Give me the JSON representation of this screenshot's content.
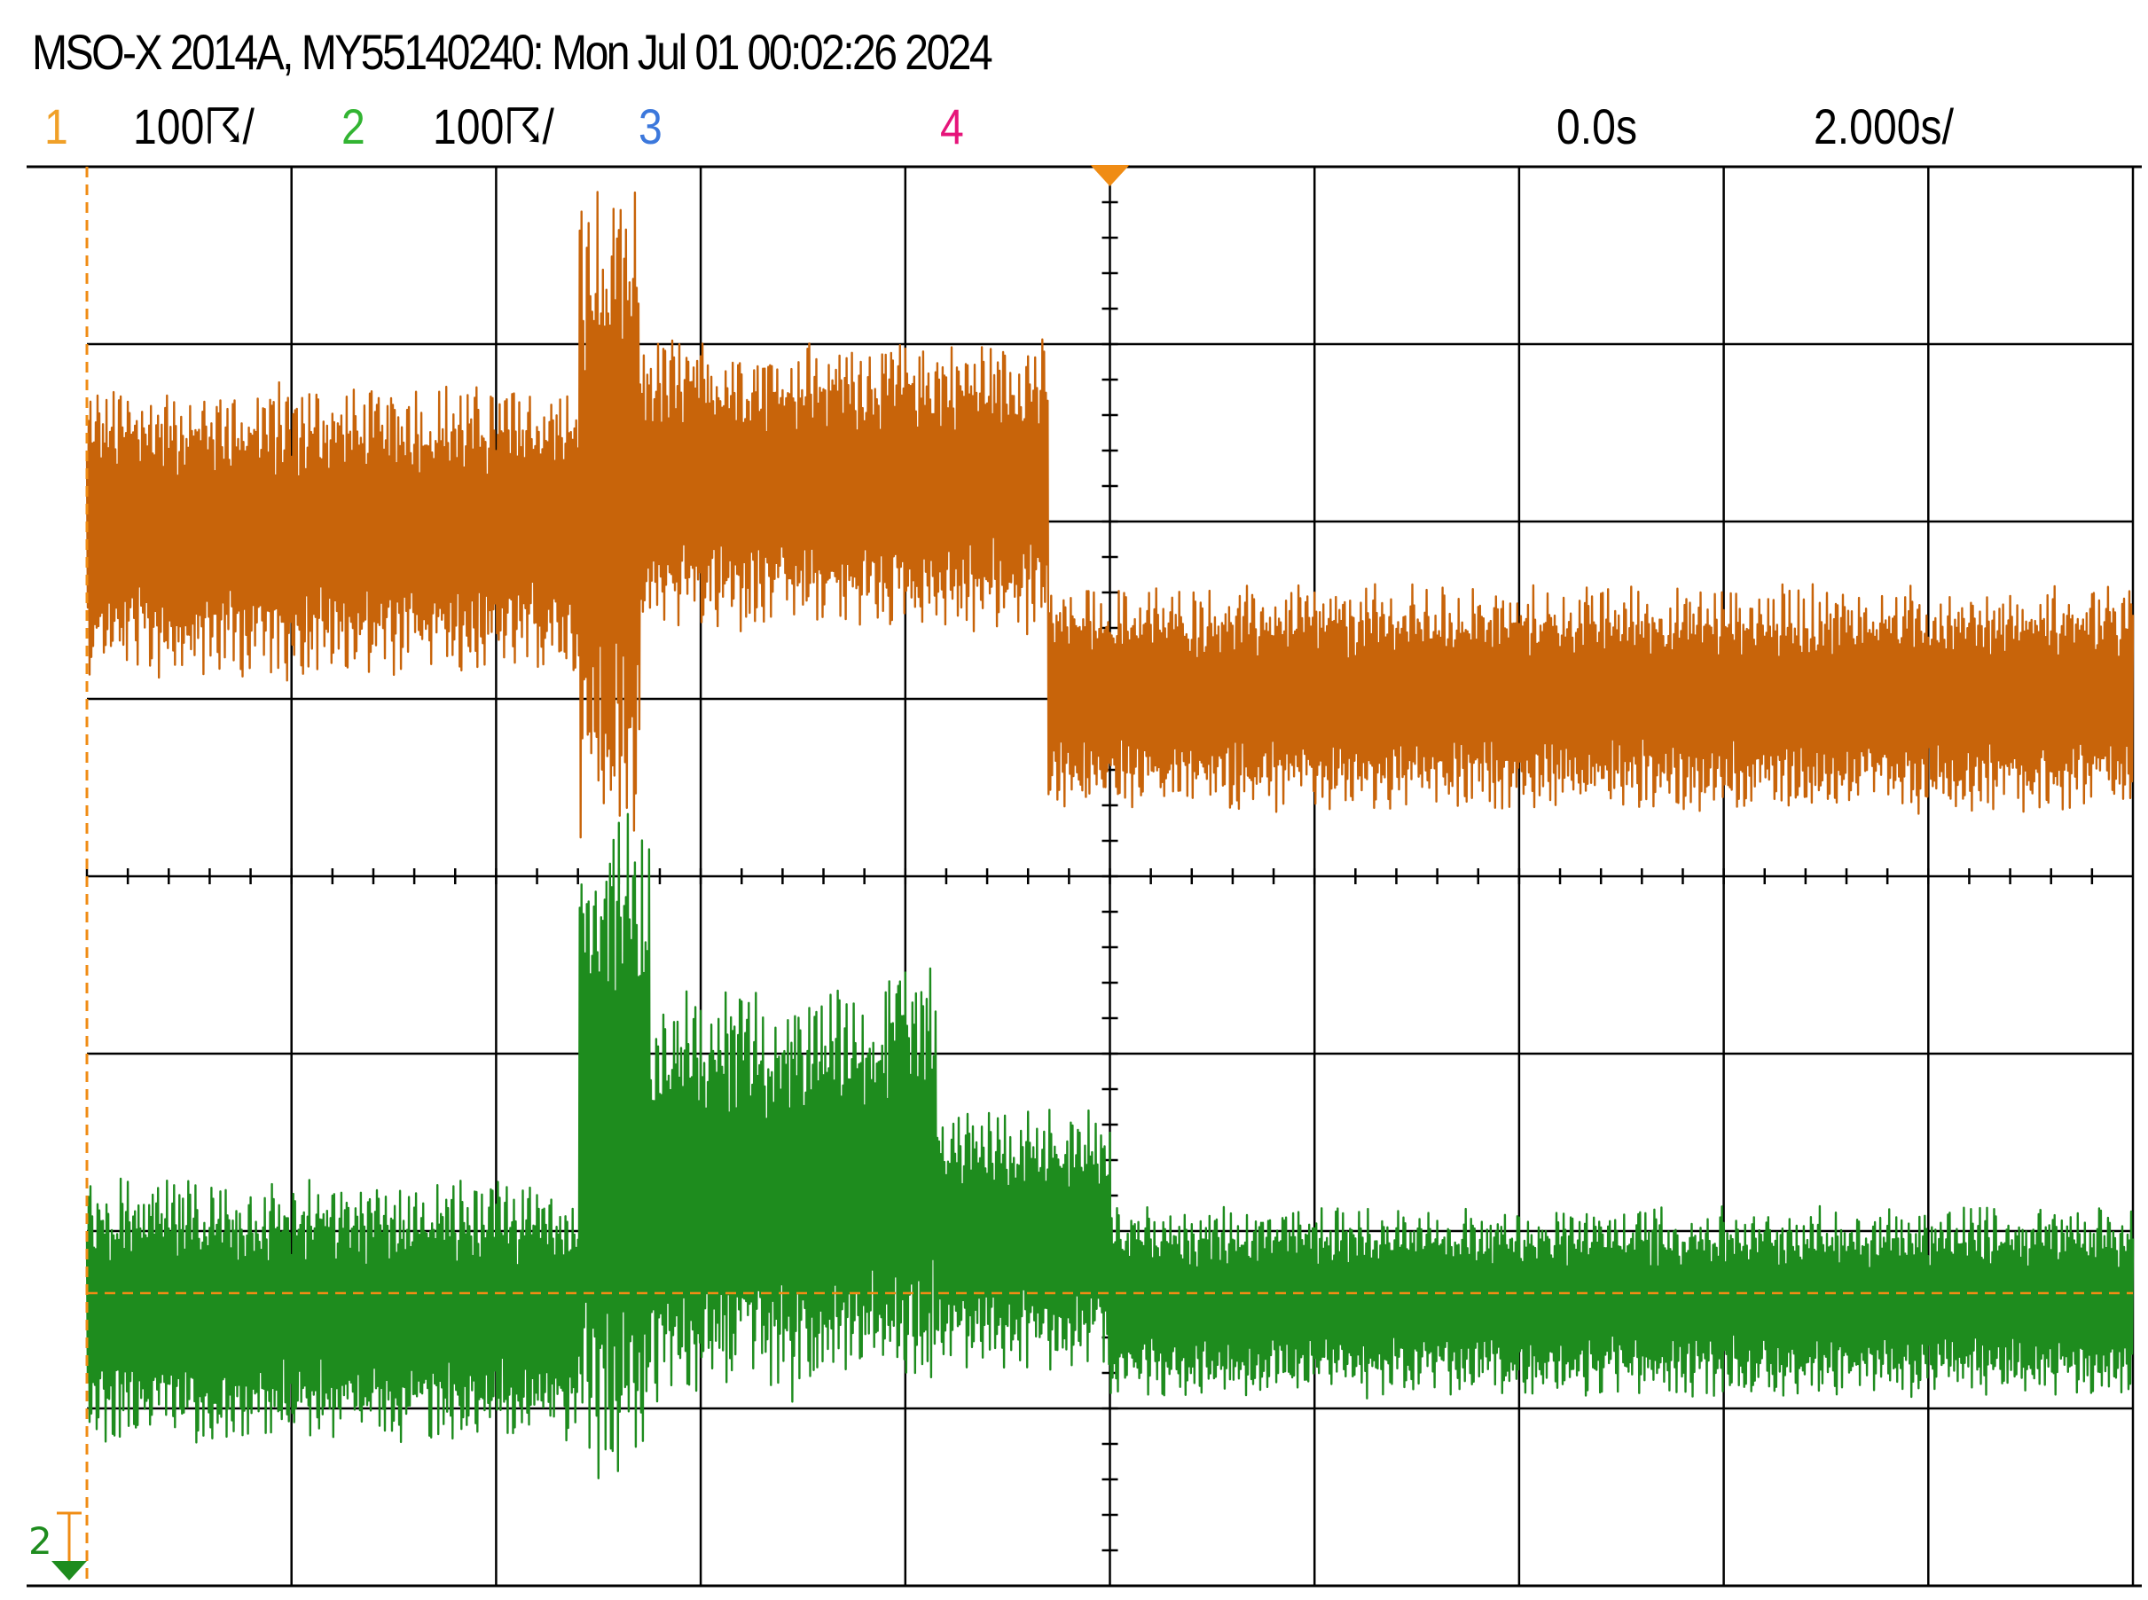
{
  "title": "MSO-X 2014A, MY55140240: Mon Jul 01 00:02:26 2024",
  "status_bar": {
    "ch1_label": "1",
    "ch1_scale": "100☈/",
    "ch2_label": "2",
    "ch2_scale": "100☈/",
    "ch3_label": "3",
    "ch4_label": "4",
    "time_offset": "0.0s",
    "time_scale": "2.000s/"
  },
  "trigger_marker_label": "2",
  "colors": {
    "ch1": "#c8640a",
    "ch2": "#1e8c1e",
    "ch3": "#3c78dc",
    "ch4": "#e6147a",
    "ch1_label": "#f0a028",
    "ch2_label": "#32b432",
    "trigger": "#f08c14",
    "grid": "#000000"
  },
  "chart_data": {
    "type": "line",
    "x_divisions": 10,
    "y_divisions": 8,
    "grid": true,
    "x_unit": "s",
    "x_range": [
      -10.0,
      10.0
    ],
    "series": [
      {
        "channel": "1",
        "segments": [
          {
            "t_start": -10.0,
            "t_end": -5.2,
            "center_div": 1.95,
            "amplitude_div": 0.85
          },
          {
            "t_start": -5.2,
            "t_end": -4.6,
            "center_div": 2.05,
            "amplitude_div": 1.9
          },
          {
            "t_start": -4.6,
            "t_end": -0.6,
            "center_div": 2.2,
            "amplitude_div": 0.85
          },
          {
            "t_start": -0.6,
            "t_end": 10.0,
            "center_div": 1.0,
            "amplitude_div": 0.65
          }
        ]
      },
      {
        "channel": "2",
        "segments": [
          {
            "t_start": -10.0,
            "t_end": -5.2,
            "center_div": -2.45,
            "amplitude_div": 0.75
          },
          {
            "t_start": -5.2,
            "t_end": -4.5,
            "center_div": -1.6,
            "amplitude_div": 2.0
          },
          {
            "t_start": -4.5,
            "t_end": -2.2,
            "center_div": -1.8,
            "amplitude_div": 1.2
          },
          {
            "t_start": -2.2,
            "t_end": -1.7,
            "center_div": -1.7,
            "amplitude_div": 1.3
          },
          {
            "t_start": -1.7,
            "t_end": 0.0,
            "center_div": -2.05,
            "amplitude_div": 0.75
          },
          {
            "t_start": 0.0,
            "t_end": 10.0,
            "center_div": -2.4,
            "amplitude_div": 0.55
          }
        ]
      }
    ],
    "trigger_level_div": -2.35
  }
}
